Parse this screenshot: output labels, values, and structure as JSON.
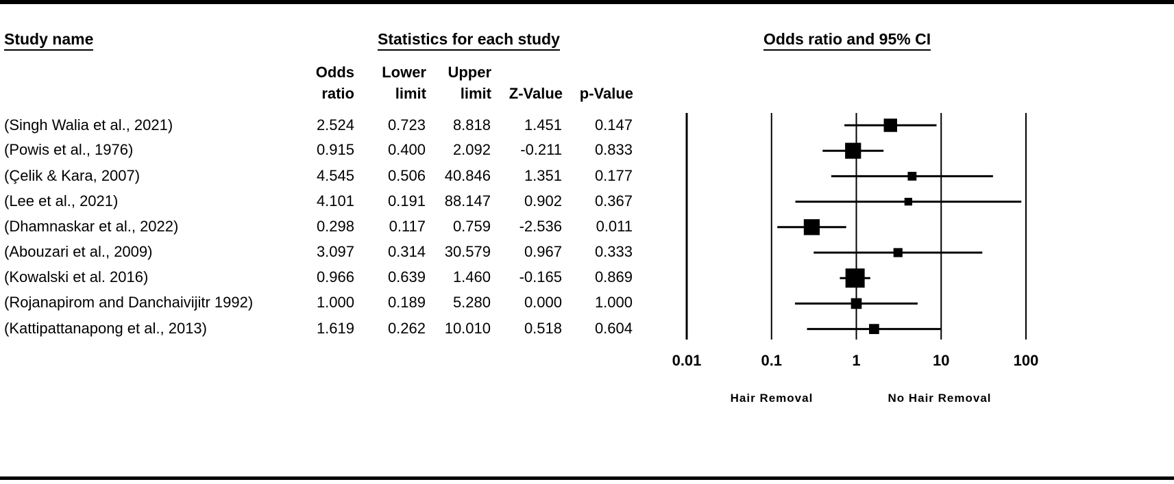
{
  "headers": {
    "study_name": "Study name",
    "statistics": "Statistics for each study",
    "plot": "Odds ratio and 95% CI"
  },
  "columns": {
    "odds_ratio": [
      "Odds",
      "ratio"
    ],
    "lower_limit": [
      "Lower",
      "limit"
    ],
    "upper_limit": [
      "Upper",
      "limit"
    ],
    "z_value": "Z-Value",
    "p_value": "p-Value"
  },
  "studies": [
    {
      "name": "(Singh Walia et al., 2021)",
      "or": "2.524",
      "lower": "0.723",
      "upper": "8.818",
      "z": "1.451",
      "p": "0.147"
    },
    {
      "name": "(Powis et al., 1976)",
      "or": "0.915",
      "lower": "0.400",
      "upper": "2.092",
      "z": "-0.211",
      "p": "0.833"
    },
    {
      "name": "(Çelik & Kara, 2007)",
      "or": "4.545",
      "lower": "0.506",
      "upper": "40.846",
      "z": "1.351",
      "p": "0.177"
    },
    {
      "name": "(Lee et al., 2021)",
      "or": "4.101",
      "lower": "0.191",
      "upper": "88.147",
      "z": "0.902",
      "p": "0.367"
    },
    {
      "name": "(Dhamnaskar et al., 2022)",
      "or": "0.298",
      "lower": "0.117",
      "upper": "0.759",
      "z": "-2.536",
      "p": "0.011"
    },
    {
      "name": "(Abouzari et al., 2009)",
      "or": "3.097",
      "lower": "0.314",
      "upper": "30.579",
      "z": "0.967",
      "p": "0.333"
    },
    {
      "name": "(Kowalski et al. 2016)",
      "or": "0.966",
      "lower": "0.639",
      "upper": "1.460",
      "z": "-0.165",
      "p": "0.869"
    },
    {
      "name": "(Rojanapirom and Danchaivijitr 1992)",
      "or": "1.000",
      "lower": "0.189",
      "upper": "5.280",
      "z": "0.000",
      "p": "1.000"
    },
    {
      "name": "(Kattipattanapong et al., 2013)",
      "or": "1.619",
      "lower": "0.262",
      "upper": "10.010",
      "z": "0.518",
      "p": "0.604"
    }
  ],
  "chart_data": {
    "type": "forest",
    "title": "Odds ratio and 95% CI",
    "x_scale": "log",
    "xlim": [
      0.01,
      100
    ],
    "x_ticks": [
      0.01,
      0.1,
      1,
      10,
      100
    ],
    "x_tick_labels": [
      "0.01",
      "0.1",
      "1",
      "10",
      "100"
    ],
    "gridlines_at": [
      0.01,
      0.1,
      1,
      10,
      100
    ],
    "favours_left": "Hair Removal",
    "favours_right": "No Hair Removal",
    "points": [
      {
        "study": "(Singh Walia et al., 2021)",
        "or": 2.524,
        "lower": 0.723,
        "upper": 8.818,
        "weight": 0.55
      },
      {
        "study": "(Powis et al., 1976)",
        "or": 0.915,
        "lower": 0.4,
        "upper": 2.092,
        "weight": 0.75
      },
      {
        "study": "(Çelik & Kara, 2007)",
        "or": 4.545,
        "lower": 0.506,
        "upper": 40.846,
        "weight": 0.2
      },
      {
        "study": "(Lee et al., 2021)",
        "or": 4.101,
        "lower": 0.191,
        "upper": 88.147,
        "weight": 0.12
      },
      {
        "study": "(Dhamnaskar et al., 2022)",
        "or": 0.298,
        "lower": 0.117,
        "upper": 0.759,
        "weight": 0.75
      },
      {
        "study": "(Abouzari et al., 2009)",
        "or": 3.097,
        "lower": 0.314,
        "upper": 30.579,
        "weight": 0.22
      },
      {
        "study": "(Kowalski et al. 2016)",
        "or": 0.966,
        "lower": 0.639,
        "upper": 1.46,
        "weight": 1.0
      },
      {
        "study": "(Rojanapirom and Danchaivijitr 1992)",
        "or": 1.0,
        "lower": 0.189,
        "upper": 5.28,
        "weight": 0.35
      },
      {
        "study": "(Kattipattanapong et al., 2013)",
        "or": 1.619,
        "lower": 0.262,
        "upper": 10.01,
        "weight": 0.3
      }
    ]
  }
}
